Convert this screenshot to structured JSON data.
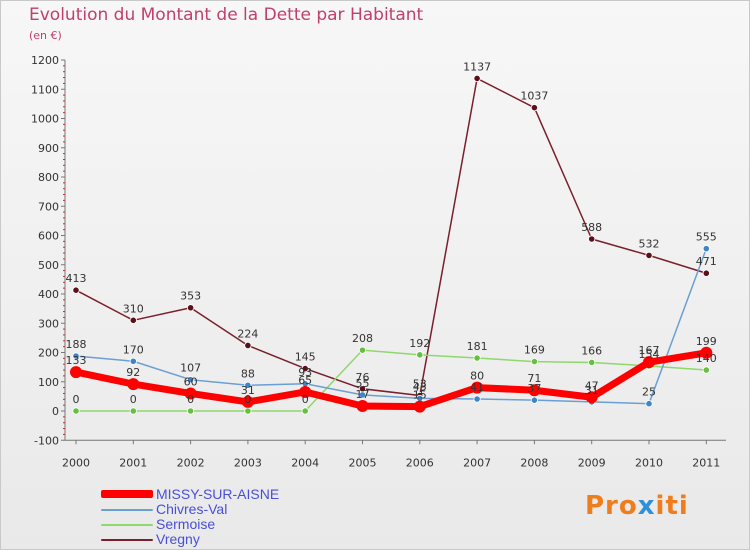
{
  "title": "Evolution du Montant de la Dette par Habitant",
  "unit": "(en €)",
  "brand": {
    "part1": "Pro",
    "part2": "x",
    "part3": "iti"
  },
  "chart_data": {
    "type": "line",
    "x": [
      "2000",
      "2001",
      "2002",
      "2003",
      "2004",
      "2005",
      "2006",
      "2007",
      "2008",
      "2009",
      "2010",
      "2011"
    ],
    "ylim": [
      -100,
      1200
    ],
    "yticks": [
      -100,
      0,
      100,
      200,
      300,
      400,
      500,
      600,
      700,
      800,
      900,
      1000,
      1100,
      1200
    ],
    "grid": false,
    "legend_position": "bottom-left",
    "series": [
      {
        "name": "Vregny",
        "color": "#7a1f2b",
        "marker": "#5a1018",
        "width": 1.5,
        "values": [
          413,
          310,
          353,
          224,
          145,
          76,
          53,
          1137,
          1037,
          588,
          532,
          471
        ]
      },
      {
        "name": "Sermoise",
        "color": "#8fd86a",
        "marker": "#66c040",
        "width": 1.5,
        "values": [
          0,
          0,
          0,
          0,
          0,
          208,
          192,
          181,
          169,
          166,
          154,
          140
        ]
      },
      {
        "name": "Chivres-Val",
        "color": "#6a9fd4",
        "marker": "#3d85c6",
        "width": 1.5,
        "values": [
          188,
          170,
          107,
          88,
          93,
          55,
          43,
          41,
          37,
          31,
          25,
          555
        ]
      },
      {
        "name": "MISSY-SUR-AISNE",
        "color": "#ff0000",
        "marker": "#ff0000",
        "width": 7,
        "values": [
          133,
          92,
          60,
          31,
          65,
          17,
          15,
          80,
          71,
          47,
          167,
          199
        ]
      }
    ],
    "labels": [
      {
        "s": 0,
        "i": 0,
        "text": "413"
      },
      {
        "s": 0,
        "i": 1,
        "text": "310"
      },
      {
        "s": 0,
        "i": 2,
        "text": "353"
      },
      {
        "s": 0,
        "i": 3,
        "text": "224"
      },
      {
        "s": 0,
        "i": 4,
        "text": "145"
      },
      {
        "s": 0,
        "i": 5,
        "text": "76"
      },
      {
        "s": 0,
        "i": 6,
        "text": "53"
      },
      {
        "s": 0,
        "i": 7,
        "text": "1137"
      },
      {
        "s": 0,
        "i": 8,
        "text": "1037"
      },
      {
        "s": 0,
        "i": 9,
        "text": "588"
      },
      {
        "s": 0,
        "i": 10,
        "text": "532"
      },
      {
        "s": 0,
        "i": 11,
        "text": "471"
      },
      {
        "s": 1,
        "i": 0,
        "text": "0"
      },
      {
        "s": 1,
        "i": 1,
        "text": "0"
      },
      {
        "s": 1,
        "i": 2,
        "text": "0"
      },
      {
        "s": 1,
        "i": 3,
        "text": "0"
      },
      {
        "s": 1,
        "i": 4,
        "text": "0"
      },
      {
        "s": 1,
        "i": 5,
        "text": "208"
      },
      {
        "s": 1,
        "i": 6,
        "text": "192"
      },
      {
        "s": 1,
        "i": 7,
        "text": "181"
      },
      {
        "s": 1,
        "i": 8,
        "text": "169"
      },
      {
        "s": 1,
        "i": 9,
        "text": "166"
      },
      {
        "s": 1,
        "i": 10,
        "text": "154"
      },
      {
        "s": 1,
        "i": 11,
        "text": "140"
      },
      {
        "s": 2,
        "i": 0,
        "text": "188"
      },
      {
        "s": 2,
        "i": 1,
        "text": "170"
      },
      {
        "s": 2,
        "i": 2,
        "text": "107"
      },
      {
        "s": 2,
        "i": 3,
        "text": "88"
      },
      {
        "s": 2,
        "i": 4,
        "text": "93"
      },
      {
        "s": 2,
        "i": 5,
        "text": "55"
      },
      {
        "s": 2,
        "i": 6,
        "text": "43"
      },
      {
        "s": 2,
        "i": 7,
        "text": "41"
      },
      {
        "s": 2,
        "i": 8,
        "text": "37"
      },
      {
        "s": 2,
        "i": 9,
        "text": "31"
      },
      {
        "s": 2,
        "i": 10,
        "text": "25"
      },
      {
        "s": 2,
        "i": 11,
        "text": "555"
      },
      {
        "s": 3,
        "i": 0,
        "text": "133"
      },
      {
        "s": 3,
        "i": 1,
        "text": "92"
      },
      {
        "s": 3,
        "i": 2,
        "text": "60"
      },
      {
        "s": 3,
        "i": 3,
        "text": "31"
      },
      {
        "s": 3,
        "i": 4,
        "text": "65"
      },
      {
        "s": 3,
        "i": 5,
        "text": "17"
      },
      {
        "s": 3,
        "i": 6,
        "text": "15"
      },
      {
        "s": 3,
        "i": 7,
        "text": "80"
      },
      {
        "s": 3,
        "i": 8,
        "text": "71"
      },
      {
        "s": 3,
        "i": 9,
        "text": "47"
      },
      {
        "s": 3,
        "i": 10,
        "text": "167"
      },
      {
        "s": 3,
        "i": 11,
        "text": "199"
      }
    ]
  },
  "legend": [
    {
      "name": "MISSY-SUR-AISNE",
      "color": "#ff0000",
      "thick": true
    },
    {
      "name": "Chivres-Val",
      "color": "#6a9fd4",
      "thick": false
    },
    {
      "name": "Sermoise",
      "color": "#8fd86a",
      "thick": false
    },
    {
      "name": "Vregny",
      "color": "#7a1f2b",
      "thick": false
    }
  ]
}
